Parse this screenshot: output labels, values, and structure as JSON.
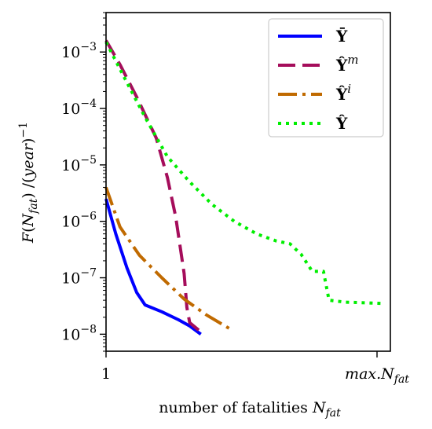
{
  "chart_data": {
    "type": "line",
    "xlabel": "number of fatalities N_fat",
    "ylabel": "F(N_fat) /(year)^-1",
    "x_tick_labels": [
      "1",
      "max.N_fat"
    ],
    "y_tick_labels": [
      {
        "base": "10",
        "exp": "−3",
        "value": 0.001
      },
      {
        "base": "10",
        "exp": "−4",
        "value": 0.0001
      },
      {
        "base": "10",
        "exp": "−5",
        "value": 1e-05
      },
      {
        "base": "10",
        "exp": "−6",
        "value": 1e-06
      },
      {
        "base": "10",
        "exp": "−7",
        "value": 1e-07
      },
      {
        "base": "10",
        "exp": "−8",
        "value": 1e-08
      }
    ],
    "y_scale": "log",
    "ylim": [
      5e-09,
      0.005
    ],
    "xlim": [
      1,
      11.2
    ],
    "x_scale_note": "fraction of max.N_fat axis",
    "legend_position": "top-right",
    "series": [
      {
        "name": "Ȳ",
        "color": "#0000ff",
        "style": "solid",
        "points": [
          [
            1,
            2.5e-06
          ],
          [
            1.35,
            6e-07
          ],
          [
            1.75,
            1.5e-07
          ],
          [
            2.1,
            5.5e-08
          ],
          [
            2.4,
            3.3e-08
          ],
          [
            3.0,
            2.5e-08
          ],
          [
            3.6,
            1.8e-08
          ],
          [
            4.0,
            1.4e-08
          ],
          [
            4.4,
            1e-08
          ]
        ]
      },
      {
        "name": "Ŷ^m",
        "color": "#a50d5b",
        "style": "dashed",
        "points": [
          [
            1,
            0.0016
          ],
          [
            1.5,
            0.0006
          ],
          [
            2.1,
            0.00016
          ],
          [
            2.8,
            3e-05
          ],
          [
            3.2,
            6e-06
          ],
          [
            3.5,
            1.2e-06
          ],
          [
            3.8,
            1.2e-07
          ],
          [
            3.9,
            3e-08
          ],
          [
            4.0,
            1.6e-08
          ],
          [
            4.4,
            1.1e-08
          ]
        ]
      },
      {
        "name": "Ŷ^i",
        "color": "#c06a00",
        "style": "dashdot",
        "points": [
          [
            1,
            4e-06
          ],
          [
            1.5,
            8e-07
          ],
          [
            2.2,
            2.5e-07
          ],
          [
            3.0,
            1e-07
          ],
          [
            3.8,
            4.2e-08
          ],
          [
            4.6,
            2.2e-08
          ],
          [
            5.5,
            1.2e-08
          ]
        ]
      },
      {
        "name": "Ŷ",
        "color": "#00ee00",
        "style": "dotted",
        "points": [
          [
            1,
            0.0015
          ],
          [
            1.6,
            0.0004
          ],
          [
            2.4,
            7e-05
          ],
          [
            3.2,
            1.4e-05
          ],
          [
            4.0,
            5e-06
          ],
          [
            4.8,
            2e-06
          ],
          [
            5.6,
            1e-06
          ],
          [
            6.4,
            6e-07
          ],
          [
            7.1,
            4.5e-07
          ],
          [
            7.6,
            4e-07
          ],
          [
            8.0,
            2.6e-07
          ],
          [
            8.4,
            1.3e-07
          ],
          [
            8.8,
            1.3e-07
          ],
          [
            9.0,
            4e-08
          ],
          [
            9.6,
            3.7e-08
          ],
          [
            10.3,
            3.6e-08
          ],
          [
            11.0,
            3.5e-08
          ]
        ]
      }
    ]
  }
}
